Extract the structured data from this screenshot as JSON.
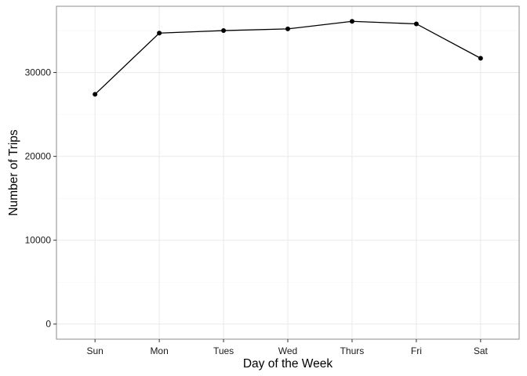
{
  "chart_data": {
    "type": "line",
    "title": "",
    "xlabel": "Day of the Week",
    "ylabel": "Number of Trips",
    "categories": [
      "Sun",
      "Mon",
      "Tues",
      "Wed",
      "Thurs",
      "Fri",
      "Sat"
    ],
    "series": [
      {
        "values": [
          27400,
          34700,
          35000,
          35200,
          36100,
          35800,
          31700
        ]
      }
    ],
    "ylim": [
      -1800,
      37900
    ],
    "y_ticks": [
      0,
      10000,
      20000,
      30000
    ],
    "y_tick_labels": [
      "0",
      "10000",
      "20000",
      "30000"
    ],
    "grid": true,
    "legend": "none",
    "colors": {
      "line": "#000000",
      "point": "#000000",
      "grid_major": "#ebebeb",
      "grid_minor": "#f5f5f5",
      "panel_border": "#8c8c8c",
      "tick_label": "#1a1a1a"
    }
  }
}
